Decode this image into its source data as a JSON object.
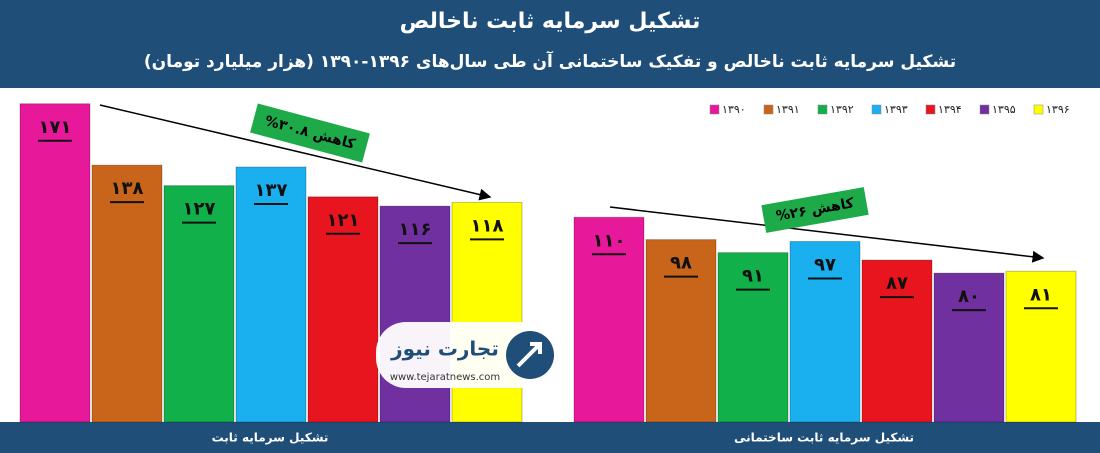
{
  "chart_data": {
    "type": "bar",
    "title": "تشکیل سرمایه ثابت ناخالص",
    "subtitle": "تشکیل سرمایه ثابت ناخالص و تفکیک ساختمانی آن طی سال‌های ۱۳۹۶-۱۳۹۰ (هزار میلیارد تومان)",
    "categories": [
      "تشکیل سرمایه ثابت",
      "تشکیل سرمایه ثابت ساختمانی"
    ],
    "series": [
      {
        "name": "۱۳۹۰",
        "color": "#e8189a",
        "values": [
          171,
          110
        ],
        "value_labels": [
          "۱۷۱",
          "۱۱۰"
        ]
      },
      {
        "name": "۱۳۹۱",
        "color": "#c8651b",
        "values": [
          138,
          98
        ],
        "value_labels": [
          "۱۳۸",
          "۹۸"
        ]
      },
      {
        "name": "۱۳۹۲",
        "color": "#12b04a",
        "values": [
          127,
          91
        ],
        "value_labels": [
          "۱۲۷",
          "۹۱"
        ]
      },
      {
        "name": "۱۳۹۳",
        "color": "#1ab0f0",
        "values": [
          137,
          97
        ],
        "value_labels": [
          "۱۳۷",
          "۹۷"
        ]
      },
      {
        "name": "۱۳۹۴",
        "color": "#e8141e",
        "values": [
          121,
          87
        ],
        "value_labels": [
          "۱۲۱",
          "۸۷"
        ]
      },
      {
        "name": "۱۳۹۵",
        "color": "#7030a0",
        "values": [
          116,
          80
        ],
        "value_labels": [
          "۱۱۶",
          "۸۰"
        ]
      },
      {
        "name": "۱۳۹۶",
        "color": "#ffff00",
        "values": [
          118,
          81
        ],
        "value_labels": [
          "۱۱۸",
          "۸۱"
        ]
      }
    ],
    "ylim": [
      0,
      180
    ],
    "legend": "top-right",
    "annotations": [
      "کاهش ۳۰.۸%",
      "کاهش ۲۶%"
    ],
    "watermark": {
      "name": "تجارت نیوز",
      "url": "www.tejaratnews.com"
    }
  }
}
